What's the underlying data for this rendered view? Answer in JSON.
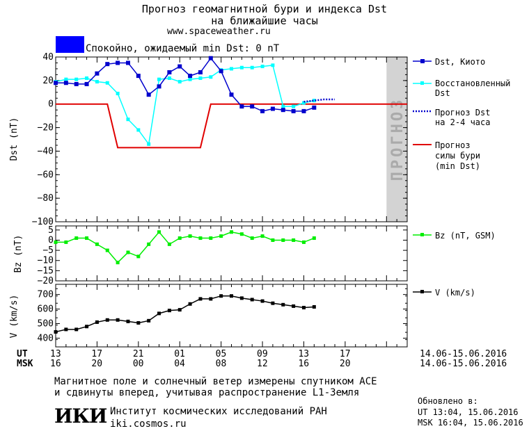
{
  "header": {
    "title_line1": "Прогноз геомагнитной бури и индекса Dst",
    "title_line2": "на ближайшие часы",
    "site": "www.spaceweather.ru",
    "status_color": "#0000ff",
    "status_text": "Спокойно, ожидаемый min Dst: 0 nT"
  },
  "legend": {
    "dst_kyoto": "Dst, Киото",
    "restored_1": "Восстановленный",
    "restored_2": "Dst",
    "forecast_dst_1": "Прогноз Dst",
    "forecast_dst_2": "на 2-4 часа",
    "storm_1": "Прогноз",
    "storm_2": "силы бури",
    "storm_3": "(min Dst)",
    "bz": "Bz (nT, GSM)",
    "v": "V (km/s)"
  },
  "forecast_zone_label": "ПРОГНОЗ",
  "time_axis": {
    "ut_label": "UT",
    "msk_label": "MSK",
    "ut_ticks": [
      "13",
      "17",
      "21",
      "01",
      "05",
      "09",
      "13",
      "17"
    ],
    "msk_ticks": [
      "16",
      "20",
      "00",
      "04",
      "08",
      "12",
      "16",
      "20"
    ],
    "ut_range": "14.06-15.06.2016",
    "msk_range": "14.06-15.06.2016"
  },
  "footer": {
    "note_1": "Магнитное поле и солнечный ветер измерены спутником ACE",
    "note_2": "и сдвинуты вперед, учитывая распространение L1-Земля",
    "institute": "Институт космических исследований РАН",
    "institute_url": "iki.cosmos.ru",
    "logo_text": "ИКИ",
    "updated_label": "Обновлено в:",
    "updated_ut": "UT  13:04, 15.06.2016",
    "updated_msk": "MSK 16:04, 15.06.2016"
  },
  "colors": {
    "dst_kyoto": "#0000cd",
    "restored": "#00ffff",
    "forecast_dst": "#0000cd",
    "storm": "#e00000",
    "bz": "#00ee00",
    "v": "#000000",
    "forecast_zone": "#d3d3d3"
  },
  "chart_data": [
    {
      "type": "line",
      "panel": "dst",
      "ylabel": "Dst (nT)",
      "ylim": [
        -100,
        40
      ],
      "yticks": [
        40,
        20,
        0,
        -20,
        -40,
        -60,
        -80,
        -100
      ],
      "xlim_hours": [
        13,
        47
      ],
      "forecast_zone_hours": [
        45,
        47
      ],
      "series": [
        {
          "name": "Dst, Киото",
          "x": [
            13,
            14,
            15,
            16,
            17,
            18,
            19,
            20,
            21,
            22,
            23,
            24,
            25,
            26,
            27,
            28,
            29,
            30,
            31,
            32,
            33,
            34,
            35,
            36,
            37,
            38
          ],
          "values": [
            18,
            18,
            17,
            17,
            26,
            34,
            35,
            35,
            24,
            8,
            15,
            27,
            32,
            24,
            27,
            39,
            28,
            8,
            -2,
            -2,
            -6,
            -4,
            -5,
            -6,
            -6,
            -3
          ]
        },
        {
          "name": "Восстановленный Dst",
          "x": [
            13,
            14,
            15,
            16,
            17,
            18,
            19,
            20,
            21,
            22,
            23,
            24,
            25,
            26,
            27,
            28,
            29,
            30,
            31,
            32,
            33,
            34,
            35,
            36,
            37,
            38
          ],
          "values": [
            19,
            21,
            21,
            22,
            19,
            18,
            9,
            -13,
            -22,
            -34,
            21,
            22,
            19,
            21,
            22,
            23,
            29,
            30,
            31,
            31,
            32,
            33,
            -2,
            -2,
            1,
            3
          ]
        },
        {
          "name": "Прогноз Dst на 2-4 часа",
          "x": [
            37,
            38,
            39,
            40
          ],
          "values": [
            2,
            3,
            4,
            4
          ]
        },
        {
          "name": "Прогноз силы бури (min Dst)",
          "x": [
            13,
            18,
            19,
            27,
            28,
            47
          ],
          "values": [
            0,
            0,
            -37,
            -37,
            0,
            0
          ]
        }
      ]
    },
    {
      "type": "line",
      "panel": "bz",
      "ylabel": "Bz (nT)",
      "ylim": [
        -20,
        7
      ],
      "yticks": [
        5,
        0,
        -5,
        -10,
        -15,
        -20
      ],
      "series": [
        {
          "name": "Bz (nT, GSM)",
          "x": [
            13,
            14,
            15,
            16,
            17,
            18,
            19,
            20,
            21,
            22,
            23,
            24,
            25,
            26,
            27,
            28,
            29,
            30,
            31,
            32,
            33,
            34,
            35,
            36,
            37,
            38
          ],
          "values": [
            -1,
            -1,
            1,
            1,
            -2,
            -5,
            -11,
            -6,
            -8,
            -2,
            4,
            -2,
            1,
            2,
            1,
            1,
            2,
            4,
            3,
            1,
            2,
            0,
            0,
            0,
            -1,
            1
          ]
        }
      ]
    },
    {
      "type": "line",
      "panel": "v",
      "ylabel": "V (km/s)",
      "ylim": [
        340,
        770
      ],
      "yticks": [
        700,
        600,
        500,
        400
      ],
      "series": [
        {
          "name": "V (km/s)",
          "x": [
            13,
            14,
            15,
            16,
            17,
            18,
            19,
            20,
            21,
            22,
            23,
            24,
            25,
            26,
            27,
            28,
            29,
            30,
            31,
            32,
            33,
            34,
            35,
            36,
            37,
            38
          ],
          "values": [
            443,
            460,
            460,
            480,
            510,
            525,
            525,
            515,
            505,
            520,
            570,
            590,
            595,
            635,
            670,
            670,
            690,
            690,
            675,
            665,
            655,
            640,
            630,
            620,
            610,
            615
          ]
        }
      ]
    }
  ]
}
